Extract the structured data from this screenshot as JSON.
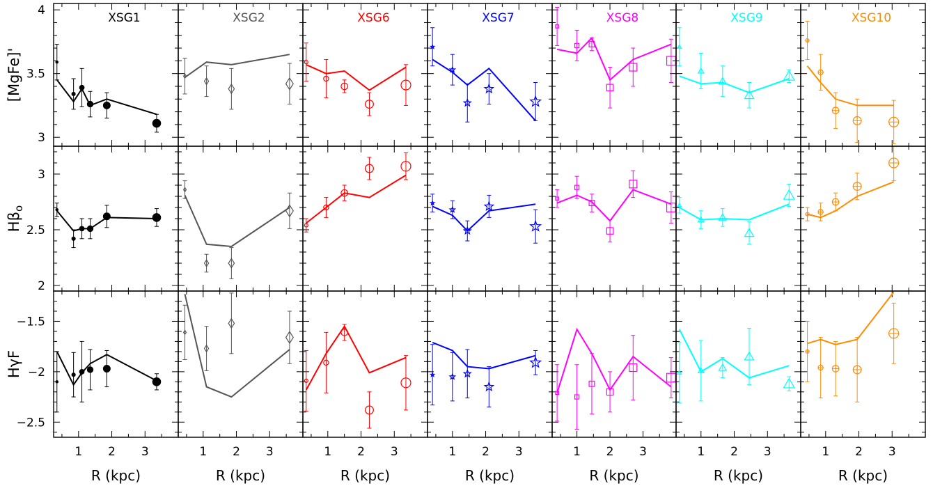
{
  "figure": {
    "x_axis_label": "R (kpc)",
    "x_ticks": [
      {
        "v": 1,
        "label": "1"
      },
      {
        "v": 2,
        "label": "2"
      },
      {
        "v": 3,
        "label": "3"
      }
    ],
    "xlim": [
      0.25,
      4.0
    ],
    "frame_color": "#000000"
  },
  "chart_data": [
    {
      "type": "scatter",
      "panel": "XSG1",
      "row": "[MgFe]'",
      "color": "#000000",
      "marker": "dot",
      "title": "XSG1",
      "ylabel": "[MgFe]'",
      "ylim": [
        2.93,
        4.05
      ],
      "y_ticks": [
        {
          "v": 3,
          "label": "3"
        },
        {
          "v": 3.5,
          "label": "3.5"
        },
        {
          "v": 4,
          "label": "4"
        }
      ],
      "model_x": [
        0.35,
        0.85,
        1.1,
        1.35,
        1.85,
        3.35
      ],
      "model_y": [
        3.45,
        3.28,
        3.38,
        3.25,
        3.3,
        3.18
      ],
      "points": [
        {
          "x": 0.35,
          "y": 3.59,
          "e": 0.14
        },
        {
          "x": 0.85,
          "y": 3.34,
          "e": 0.12
        },
        {
          "x": 1.1,
          "y": 3.39,
          "e": 0.15
        },
        {
          "x": 1.35,
          "y": 3.26,
          "e": 0.1
        },
        {
          "x": 1.85,
          "y": 3.25,
          "e": 0.1
        },
        {
          "x": 3.35,
          "y": 3.11,
          "e": 0.07
        }
      ]
    },
    {
      "type": "scatter",
      "panel": "XSG2",
      "row": "[MgFe]'",
      "color": "#555555",
      "marker": "diamond",
      "title": "XSG2",
      "ylabel": "",
      "ylim": [
        2.93,
        4.05
      ],
      "y_ticks": [],
      "model_x": [
        0.45,
        1.1,
        1.85,
        3.6
      ],
      "model_y": [
        3.47,
        3.59,
        3.57,
        3.65
      ],
      "points": [
        {
          "x": 0.45,
          "y": 3.48,
          "e": 0.14
        },
        {
          "x": 1.1,
          "y": 3.44,
          "e": 0.12
        },
        {
          "x": 1.85,
          "y": 3.38,
          "e": 0.16
        },
        {
          "x": 3.6,
          "y": 3.42,
          "e": 0.16
        }
      ]
    },
    {
      "type": "scatter",
      "panel": "XSG6",
      "row": "[MgFe]'",
      "color": "#ff0000",
      "marker": "circle",
      "title": "XSG6",
      "ylabel": "",
      "ylim": [
        2.93,
        4.05
      ],
      "y_ticks": [],
      "model_x": [
        0.35,
        0.95,
        1.5,
        2.25,
        3.35
      ],
      "model_y": [
        3.57,
        3.5,
        3.52,
        3.37,
        3.55
      ],
      "points": [
        {
          "x": 0.35,
          "y": 3.59,
          "e": 0.15
        },
        {
          "x": 0.95,
          "y": 3.46,
          "e": 0.15
        },
        {
          "x": 1.5,
          "y": 3.4,
          "e": 0.05
        },
        {
          "x": 2.25,
          "y": 3.26,
          "e": 0.09
        },
        {
          "x": 3.35,
          "y": 3.41,
          "e": 0.16
        }
      ]
    },
    {
      "type": "scatter",
      "panel": "XSG7",
      "row": "[MgFe]'",
      "color": "#0000ff",
      "marker": "star",
      "title": "XSG7",
      "ylabel": "",
      "ylim": [
        2.93,
        4.05
      ],
      "y_ticks": [],
      "model_x": [
        0.4,
        1.0,
        1.45,
        2.1,
        3.5
      ],
      "model_y": [
        3.61,
        3.51,
        3.41,
        3.54,
        3.13
      ],
      "points": [
        {
          "x": 0.4,
          "y": 3.71,
          "e": 0.15
        },
        {
          "x": 1.0,
          "y": 3.53,
          "e": 0.12
        },
        {
          "x": 1.45,
          "y": 3.27,
          "e": 0.15
        },
        {
          "x": 2.1,
          "y": 3.38,
          "e": 0.12
        },
        {
          "x": 3.5,
          "y": 3.28,
          "e": 0.15
        }
      ]
    },
    {
      "type": "scatter",
      "panel": "XSG8",
      "row": "[MgFe]'",
      "color": "#ff00ff",
      "marker": "square",
      "title": "XSG8",
      "ylabel": "",
      "ylim": [
        2.93,
        4.05
      ],
      "y_ticks": [],
      "model_x": [
        0.4,
        1.0,
        1.45,
        2.0,
        2.7,
        3.85
      ],
      "model_y": [
        3.69,
        3.66,
        3.78,
        3.45,
        3.61,
        3.73
      ],
      "points": [
        {
          "x": 0.4,
          "y": 3.87,
          "e": 0.15
        },
        {
          "x": 1.0,
          "y": 3.72,
          "e": 0.12
        },
        {
          "x": 1.45,
          "y": 3.73,
          "e": 0.05
        },
        {
          "x": 2.0,
          "y": 3.39,
          "e": 0.16
        },
        {
          "x": 2.7,
          "y": 3.55,
          "e": 0.15
        },
        {
          "x": 3.85,
          "y": 3.6,
          "e": 0.17
        }
      ]
    },
    {
      "type": "scatter",
      "panel": "XSG9",
      "row": "[MgFe]'",
      "color": "#00ffff",
      "marker": "triangle",
      "title": "XSG9",
      "ylabel": "",
      "ylim": [
        2.93,
        4.05
      ],
      "y_ticks": [],
      "model_x": [
        0.35,
        1.0,
        1.65,
        2.45,
        3.65
      ],
      "model_y": [
        3.48,
        3.42,
        3.43,
        3.35,
        3.46
      ],
      "points": [
        {
          "x": 0.35,
          "y": 3.71,
          "e": 0.15
        },
        {
          "x": 1.0,
          "y": 3.52,
          "e": 0.14
        },
        {
          "x": 1.65,
          "y": 3.44,
          "e": 0.12
        },
        {
          "x": 2.45,
          "y": 3.33,
          "e": 0.1
        },
        {
          "x": 3.65,
          "y": 3.48,
          "e": 0.05
        }
      ]
    },
    {
      "type": "scatter",
      "panel": "XSG10",
      "row": "[MgFe]'",
      "color": "#ff8c00",
      "marker": "circle-plus",
      "title": "XSG10",
      "ylabel": "",
      "ylim": [
        2.93,
        4.05
      ],
      "y_ticks": [],
      "model_x": [
        0.45,
        0.85,
        1.3,
        1.95,
        3.05
      ],
      "model_y": [
        3.56,
        3.43,
        3.3,
        3.25,
        3.25
      ],
      "points": [
        {
          "x": 0.45,
          "y": 3.76,
          "e": 0.15
        },
        {
          "x": 0.85,
          "y": 3.51,
          "e": 0.14
        },
        {
          "x": 1.3,
          "y": 3.21,
          "e": 0.14
        },
        {
          "x": 1.95,
          "y": 3.13,
          "e": 0.17
        },
        {
          "x": 3.05,
          "y": 3.12,
          "e": 0.17
        }
      ]
    },
    {
      "type": "scatter",
      "panel": "XSG1",
      "row": "Hβo",
      "color": "#000000",
      "marker": "dot",
      "title": "",
      "ylabel": "Hβ_o",
      "ylim": [
        1.95,
        3.25
      ],
      "y_ticks": [
        {
          "v": 2,
          "label": "2"
        },
        {
          "v": 2.5,
          "label": "2.5"
        },
        {
          "v": 3,
          "label": "3"
        }
      ],
      "model_x": [
        0.35,
        0.85,
        1.1,
        1.35,
        1.85,
        3.35
      ],
      "model_y": [
        2.67,
        2.49,
        2.51,
        2.51,
        2.61,
        2.6
      ],
      "points": [
        {
          "x": 0.35,
          "y": 2.68,
          "e": 0.06
        },
        {
          "x": 0.85,
          "y": 2.42,
          "e": 0.08
        },
        {
          "x": 1.1,
          "y": 2.51,
          "e": 0.09
        },
        {
          "x": 1.35,
          "y": 2.51,
          "e": 0.09
        },
        {
          "x": 1.85,
          "y": 2.62,
          "e": 0.1
        },
        {
          "x": 3.35,
          "y": 2.61,
          "e": 0.08
        }
      ]
    },
    {
      "type": "scatter",
      "panel": "XSG2",
      "row": "Hβo",
      "color": "#555555",
      "marker": "diamond",
      "title": "",
      "ylabel": "",
      "ylim": [
        1.95,
        3.25
      ],
      "y_ticks": [],
      "model_x": [
        0.45,
        1.1,
        1.85,
        3.6
      ],
      "model_y": [
        2.81,
        2.37,
        2.35,
        2.7
      ],
      "points": [
        {
          "x": 0.45,
          "y": 2.86,
          "e": 0.08
        },
        {
          "x": 1.1,
          "y": 2.2,
          "e": 0.08
        },
        {
          "x": 1.85,
          "y": 2.2,
          "e": 0.14
        },
        {
          "x": 3.6,
          "y": 2.67,
          "e": 0.16
        }
      ]
    },
    {
      "type": "scatter",
      "panel": "XSG6",
      "row": "Hβo",
      "color": "#ff0000",
      "marker": "circle",
      "title": "",
      "ylabel": "",
      "ylim": [
        1.95,
        3.25
      ],
      "y_ticks": [],
      "model_x": [
        0.35,
        0.95,
        1.5,
        2.25,
        3.35
      ],
      "model_y": [
        2.56,
        2.7,
        2.83,
        2.79,
        2.99
      ],
      "points": [
        {
          "x": 0.35,
          "y": 2.54,
          "e": 0.06
        },
        {
          "x": 0.95,
          "y": 2.7,
          "e": 0.09
        },
        {
          "x": 1.5,
          "y": 2.83,
          "e": 0.07
        },
        {
          "x": 2.25,
          "y": 3.05,
          "e": 0.1
        },
        {
          "x": 3.35,
          "y": 3.07,
          "e": 0.12
        }
      ]
    },
    {
      "type": "scatter",
      "panel": "XSG7",
      "row": "Hβo",
      "color": "#0000ff",
      "marker": "star",
      "title": "",
      "ylabel": "",
      "ylim": [
        1.95,
        3.25
      ],
      "y_ticks": [],
      "model_x": [
        0.4,
        1.0,
        1.45,
        2.1,
        3.5
      ],
      "model_y": [
        2.71,
        2.63,
        2.49,
        2.67,
        2.73
      ],
      "points": [
        {
          "x": 0.4,
          "y": 2.74,
          "e": 0.08
        },
        {
          "x": 1.0,
          "y": 2.68,
          "e": 0.08
        },
        {
          "x": 1.45,
          "y": 2.49,
          "e": 0.09
        },
        {
          "x": 2.1,
          "y": 2.71,
          "e": 0.1
        },
        {
          "x": 3.5,
          "y": 2.53,
          "e": 0.15
        }
      ]
    },
    {
      "type": "scatter",
      "panel": "XSG8",
      "row": "Hβo",
      "color": "#ff00ff",
      "marker": "square",
      "title": "",
      "ylabel": "",
      "ylim": [
        1.95,
        3.25
      ],
      "y_ticks": [],
      "model_x": [
        0.4,
        1.0,
        1.45,
        2.0,
        2.7,
        3.85
      ],
      "model_y": [
        2.74,
        2.81,
        2.75,
        2.58,
        2.86,
        2.73
      ],
      "points": [
        {
          "x": 0.4,
          "y": 2.78,
          "e": 0.08
        },
        {
          "x": 1.0,
          "y": 2.88,
          "e": 0.1
        },
        {
          "x": 1.45,
          "y": 2.74,
          "e": 0.08
        },
        {
          "x": 2.0,
          "y": 2.49,
          "e": 0.1
        },
        {
          "x": 2.7,
          "y": 2.91,
          "e": 0.12
        },
        {
          "x": 3.85,
          "y": 2.7,
          "e": 0.14
        }
      ]
    },
    {
      "type": "scatter",
      "panel": "XSG9",
      "row": "Hβo",
      "color": "#00ffff",
      "marker": "triangle",
      "title": "",
      "ylabel": "",
      "ylim": [
        1.95,
        3.25
      ],
      "y_ticks": [],
      "model_x": [
        0.35,
        1.0,
        1.65,
        2.45,
        3.65
      ],
      "model_y": [
        2.7,
        2.59,
        2.6,
        2.59,
        2.73
      ],
      "points": [
        {
          "x": 0.35,
          "y": 2.72,
          "e": 0.07
        },
        {
          "x": 1.0,
          "y": 2.59,
          "e": 0.08
        },
        {
          "x": 1.65,
          "y": 2.61,
          "e": 0.08
        },
        {
          "x": 2.45,
          "y": 2.47,
          "e": 0.1
        },
        {
          "x": 3.65,
          "y": 2.81,
          "e": 0.1
        }
      ]
    },
    {
      "type": "scatter",
      "panel": "XSG10",
      "row": "Hβo",
      "color": "#ff8c00",
      "marker": "circle-plus",
      "title": "",
      "ylabel": "",
      "ylim": [
        1.95,
        3.25
      ],
      "y_ticks": [],
      "model_x": [
        0.45,
        0.85,
        1.3,
        1.95,
        3.05
      ],
      "model_y": [
        2.64,
        2.61,
        2.67,
        2.8,
        2.93
      ],
      "points": [
        {
          "x": 0.45,
          "y": 2.64,
          "e": 0.06
        },
        {
          "x": 0.85,
          "y": 2.66,
          "e": 0.08
        },
        {
          "x": 1.3,
          "y": 2.75,
          "e": 0.08
        },
        {
          "x": 1.95,
          "y": 2.89,
          "e": 0.12
        },
        {
          "x": 3.05,
          "y": 3.1,
          "e": 0.16
        }
      ]
    },
    {
      "type": "scatter",
      "panel": "XSG1",
      "row": "HγF",
      "color": "#000000",
      "marker": "dot",
      "title": "",
      "ylabel": "HγF",
      "ylim": [
        -2.65,
        -1.2
      ],
      "y_ticks": [
        {
          "v": -2.5,
          "label": "−2.5"
        },
        {
          "v": -2,
          "label": "−2"
        },
        {
          "v": -1.5,
          "label": "−1.5"
        }
      ],
      "model_x": [
        0.35,
        0.85,
        1.1,
        1.35,
        1.85,
        3.35
      ],
      "model_y": [
        -1.8,
        -2.13,
        -2.01,
        -1.92,
        -1.83,
        -2.09
      ],
      "points": [
        {
          "x": 0.35,
          "y": -2.1,
          "e": 0.3
        },
        {
          "x": 0.85,
          "y": -2.03,
          "e": 0.22
        },
        {
          "x": 1.1,
          "y": -2.0,
          "e": 0.3
        },
        {
          "x": 1.35,
          "y": -1.98,
          "e": 0.2
        },
        {
          "x": 1.85,
          "y": -1.97,
          "e": 0.18
        },
        {
          "x": 3.35,
          "y": -2.1,
          "e": 0.08
        }
      ]
    },
    {
      "type": "scatter",
      "panel": "XSG2",
      "row": "HγF",
      "color": "#555555",
      "marker": "diamond",
      "title": "",
      "ylabel": "",
      "ylim": [
        -2.65,
        -1.2
      ],
      "y_ticks": [],
      "model_x": [
        0.45,
        1.1,
        1.85,
        3.6
      ],
      "model_y": [
        -1.23,
        -2.15,
        -2.25,
        -1.78
      ],
      "points": [
        {
          "x": 0.45,
          "y": -1.61,
          "e": 0.27
        },
        {
          "x": 1.1,
          "y": -1.77,
          "e": 0.22
        },
        {
          "x": 1.85,
          "y": -1.52,
          "e": 0.3
        },
        {
          "x": 3.6,
          "y": -1.66,
          "e": 0.26
        }
      ]
    },
    {
      "type": "scatter",
      "panel": "XSG6",
      "row": "HγF",
      "color": "#ff0000",
      "marker": "circle",
      "title": "",
      "ylabel": "",
      "ylim": [
        -2.65,
        -1.2
      ],
      "y_ticks": [],
      "model_x": [
        0.35,
        0.95,
        1.5,
        2.25,
        3.35
      ],
      "model_y": [
        -2.18,
        -1.82,
        -1.55,
        -2.01,
        -1.86
      ],
      "points": [
        {
          "x": 0.35,
          "y": -2.09,
          "e": 0.3
        },
        {
          "x": 0.95,
          "y": -1.91,
          "e": 0.3
        },
        {
          "x": 1.5,
          "y": -1.61,
          "e": 0.08
        },
        {
          "x": 2.25,
          "y": -2.38,
          "e": 0.18
        },
        {
          "x": 3.35,
          "y": -2.11,
          "e": 0.27
        }
      ]
    },
    {
      "type": "scatter",
      "panel": "XSG7",
      "row": "HγF",
      "color": "#0000ff",
      "marker": "star",
      "title": "",
      "ylabel": "",
      "ylim": [
        -2.65,
        -1.2
      ],
      "y_ticks": [],
      "model_x": [
        0.4,
        1.0,
        1.45,
        2.1,
        3.5
      ],
      "model_y": [
        -1.71,
        -1.79,
        -1.95,
        -1.97,
        -1.84
      ],
      "points": [
        {
          "x": 0.4,
          "y": -2.03,
          "e": 0.3
        },
        {
          "x": 1.0,
          "y": -2.05,
          "e": 0.24
        },
        {
          "x": 1.45,
          "y": -2.02,
          "e": 0.24
        },
        {
          "x": 2.1,
          "y": -2.15,
          "e": 0.2
        },
        {
          "x": 3.5,
          "y": -1.91,
          "e": 0.12
        }
      ]
    },
    {
      "type": "scatter",
      "panel": "XSG8",
      "row": "HγF",
      "color": "#ff00ff",
      "marker": "square",
      "title": "",
      "ylabel": "",
      "ylim": [
        -2.65,
        -1.2
      ],
      "y_ticks": [],
      "model_x": [
        0.4,
        1.0,
        1.45,
        2.0,
        2.7,
        3.85
      ],
      "model_y": [
        -2.21,
        -1.58,
        -1.82,
        -2.18,
        -1.85,
        -2.15
      ],
      "points": [
        {
          "x": 0.4,
          "y": -2.21,
          "e": 0.28
        },
        {
          "x": 1.0,
          "y": -2.25,
          "e": 0.32
        },
        {
          "x": 1.45,
          "y": -2.12,
          "e": 0.3
        },
        {
          "x": 2.0,
          "y": -2.2,
          "e": 0.2
        },
        {
          "x": 2.7,
          "y": -1.96,
          "e": 0.32
        },
        {
          "x": 3.85,
          "y": -2.06,
          "e": 0.2
        }
      ]
    },
    {
      "type": "scatter",
      "panel": "XSG9",
      "row": "HγF",
      "color": "#00ffff",
      "marker": "triangle",
      "title": "",
      "ylabel": "",
      "ylim": [
        -2.65,
        -1.2
      ],
      "y_ticks": [],
      "model_x": [
        0.35,
        1.0,
        1.65,
        2.45,
        3.65
      ],
      "model_y": [
        -1.58,
        -2.0,
        -1.87,
        -2.06,
        -1.94
      ],
      "points": [
        {
          "x": 0.35,
          "y": -2.01,
          "e": 0.3
        },
        {
          "x": 1.0,
          "y": -1.99,
          "e": 0.3
        },
        {
          "x": 1.65,
          "y": -1.96,
          "e": 0.1
        },
        {
          "x": 2.45,
          "y": -1.85,
          "e": 0.28
        },
        {
          "x": 3.65,
          "y": -2.12,
          "e": 0.07
        }
      ]
    },
    {
      "type": "scatter",
      "panel": "XSG10",
      "row": "HγF",
      "color": "#ff8c00",
      "marker": "circle-plus",
      "title": "",
      "ylabel": "",
      "ylim": [
        -2.65,
        -1.2
      ],
      "y_ticks": [],
      "model_x": [
        0.45,
        0.85,
        1.3,
        1.95,
        3.05
      ],
      "model_y": [
        -1.72,
        -1.68,
        -1.73,
        -1.68,
        -1.21
      ],
      "points": [
        {
          "x": 0.45,
          "y": -1.8,
          "e": 0.3
        },
        {
          "x": 0.85,
          "y": -1.96,
          "e": 0.3
        },
        {
          "x": 1.3,
          "y": -1.97,
          "e": 0.27
        },
        {
          "x": 1.95,
          "y": -1.98,
          "e": 0.32
        },
        {
          "x": 3.05,
          "y": -1.62,
          "e": 0.3
        }
      ]
    }
  ]
}
